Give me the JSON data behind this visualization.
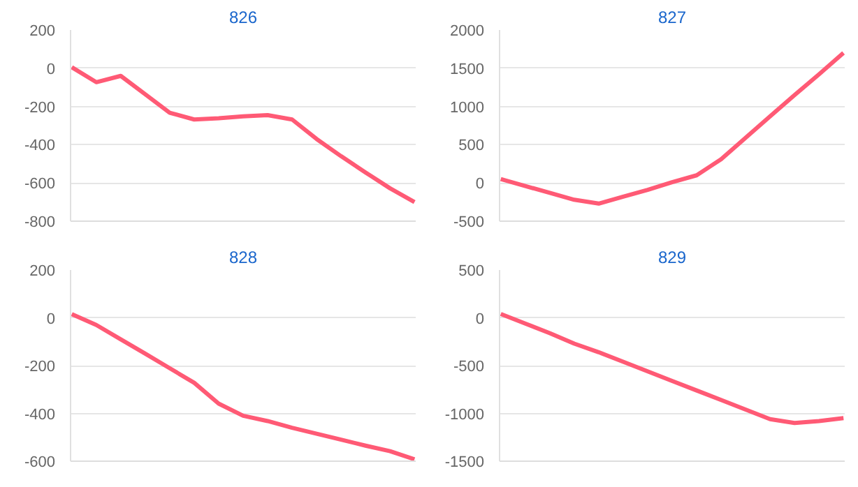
{
  "chart_data": [
    {
      "type": "line",
      "title": "826",
      "categories": [
        null,
        null,
        null,
        null,
        null,
        null,
        null,
        null,
        null,
        null,
        null,
        null,
        null,
        null,
        null
      ],
      "series": [
        {
          "color": "#ff5a75",
          "values": [
            5,
            -73,
            -40,
            -136,
            -233,
            -268,
            -262,
            -252,
            -245,
            -268,
            -370,
            -460,
            -545,
            -628,
            -700
          ]
        }
      ],
      "ylim": [
        -800,
        200
      ],
      "yticks": [
        -800,
        -600,
        -400,
        -200,
        0,
        200
      ],
      "grid": "y",
      "tick_labels": "y",
      "marker": "none",
      "line_style": "solid"
    },
    {
      "type": "line",
      "title": "827",
      "categories": [
        null,
        null,
        null,
        null,
        null,
        null,
        null,
        null,
        null,
        null,
        null,
        null,
        null,
        null,
        null
      ],
      "series": [
        {
          "color": "#ff5a75",
          "values": [
            50,
            -40,
            -130,
            -220,
            -270,
            -180,
            -90,
            10,
            100,
            310,
            590,
            870,
            1150,
            1420,
            1700
          ]
        }
      ],
      "ylim": [
        -500,
        2000
      ],
      "yticks": [
        -500,
        0,
        500,
        1000,
        1500,
        2000
      ],
      "grid": "y",
      "tick_labels": "y",
      "marker": "none",
      "line_style": "solid"
    },
    {
      "type": "line",
      "title": "828",
      "categories": [
        null,
        null,
        null,
        null,
        null,
        null,
        null,
        null,
        null,
        null,
        null,
        null,
        null,
        null,
        null
      ],
      "series": [
        {
          "color": "#ff5a75",
          "values": [
            15,
            -30,
            -90,
            -150,
            -211,
            -272,
            -359,
            -410,
            -432,
            -460,
            -485,
            -510,
            -535,
            -558,
            -592
          ]
        }
      ],
      "ylim": [
        -600,
        200
      ],
      "yticks": [
        -600,
        -400,
        -200,
        0,
        200
      ],
      "grid": "y",
      "tick_labels": "y",
      "marker": "none",
      "line_style": "solid"
    },
    {
      "type": "line",
      "title": "829",
      "categories": [
        null,
        null,
        null,
        null,
        null,
        null,
        null,
        null,
        null,
        null,
        null,
        null,
        null,
        null,
        null
      ],
      "series": [
        {
          "color": "#ff5a75",
          "values": [
            40,
            -60,
            -160,
            -270,
            -360,
            -460,
            -560,
            -660,
            -760,
            -860,
            -960,
            -1060,
            -1100,
            -1080,
            -1050
          ]
        }
      ],
      "ylim": [
        -1500,
        500
      ],
      "yticks": [
        -1500,
        -1000,
        -500,
        0,
        500
      ],
      "grid": "y",
      "tick_labels": "y",
      "marker": "none",
      "line_style": "solid"
    }
  ]
}
